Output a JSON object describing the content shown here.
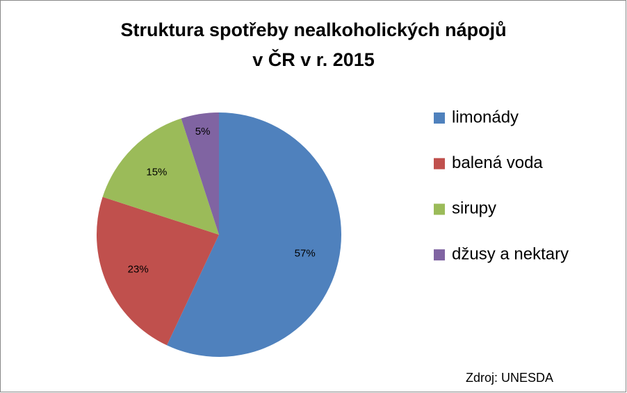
{
  "chart_data": {
    "type": "pie",
    "title": [
      "Struktura spotřeby nealkoholických nápojů",
      "v ČR v r. 2015"
    ],
    "categories": [
      "limonády",
      "balená voda",
      "sirupy",
      "džusy a nektary"
    ],
    "values": [
      57,
      23,
      15,
      5
    ],
    "value_labels": [
      "57%",
      "23%",
      "15%",
      "5%"
    ],
    "colors": [
      "#4f81bd",
      "#c0504d",
      "#9bbb59",
      "#8064a2"
    ],
    "legend": "right",
    "annotation": "Zdroj: UNESDA"
  }
}
